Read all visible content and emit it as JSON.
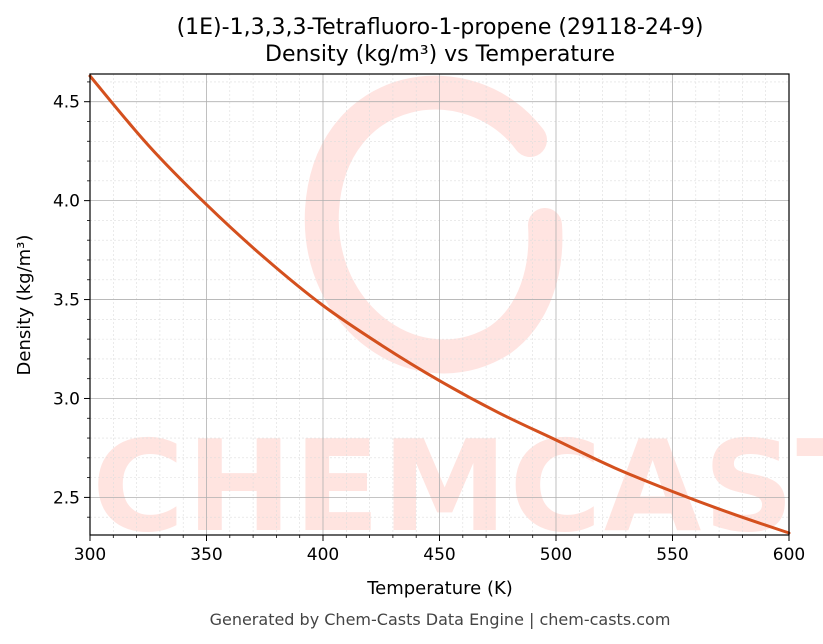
{
  "chart_data": {
    "type": "line",
    "title": "(1E)-1,3,3,3-Tetrafluoro-1-propene (29118-24-9)",
    "subtitle": "Density (kg/m³) vs Temperature",
    "xlabel": "Temperature (K)",
    "ylabel": "Density (kg/m³)",
    "xlim": [
      300,
      600
    ],
    "ylim": [
      2.31,
      4.64
    ],
    "xticks": [
      300,
      350,
      400,
      450,
      500,
      550,
      600
    ],
    "yticks": [
      2.5,
      3.0,
      3.5,
      4.0,
      4.5
    ],
    "ytick_labels": [
      "2.5",
      "3.0",
      "3.5",
      "4.0",
      "4.5"
    ],
    "grid": true,
    "series": [
      {
        "color": "#d4501e",
        "x": [
          300,
          325,
          350,
          375,
          400,
          425,
          450,
          475,
          500,
          525,
          550,
          575,
          600
        ],
        "y": [
          4.63,
          4.28,
          3.98,
          3.71,
          3.47,
          3.27,
          3.09,
          2.93,
          2.79,
          2.65,
          2.53,
          2.42,
          2.32
        ]
      }
    ]
  },
  "watermark": {
    "text": "CHEMCASTS"
  },
  "footer": "Generated by Chem-Casts Data Engine | chem-casts.com"
}
